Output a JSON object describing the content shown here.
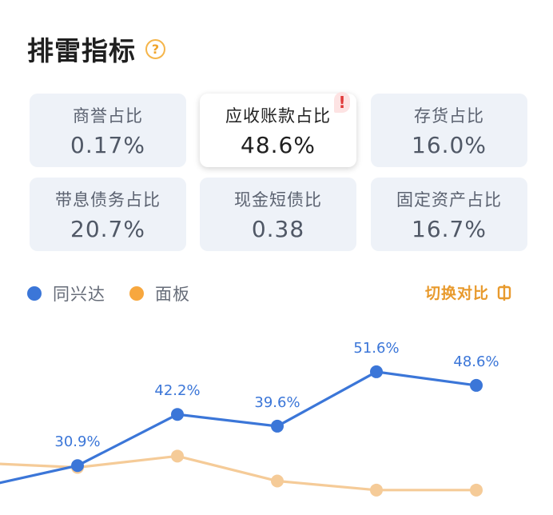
{
  "header": {
    "title": "排雷指标",
    "help_icon": "?"
  },
  "metrics": [
    {
      "label": "商誉占比",
      "value": "0.17%",
      "selected": false
    },
    {
      "label": "应收账款占比",
      "value": "48.6%",
      "selected": true,
      "alert": "!"
    },
    {
      "label": "存货占比",
      "value": "16.0%",
      "selected": false
    },
    {
      "label": "带息债务占比",
      "value": "20.7%",
      "selected": false
    },
    {
      "label": "现金短债比",
      "value": "0.38",
      "selected": false
    },
    {
      "label": "固定资产占比",
      "value": "16.7%",
      "selected": false
    }
  ],
  "legend": [
    {
      "name": "同兴达",
      "color": "#3b76d8"
    },
    {
      "name": "面板",
      "color": "#f7a73e"
    }
  ],
  "compare_button": {
    "label": "切换对比"
  },
  "colors": {
    "primary": "#3b76d8",
    "secondary": "#f5cb98",
    "accent": "#e89a2d",
    "alert": "#e03a3a"
  },
  "chart_data": {
    "type": "line",
    "series": [
      {
        "name": "同兴达",
        "values": [
          26.0,
          30.9,
          42.2,
          39.6,
          51.6,
          48.6
        ],
        "labels": [
          "",
          "30.9%",
          "42.2%",
          "39.6%",
          "51.6%",
          "48.6%"
        ]
      },
      {
        "name": "面板",
        "values": [
          31.5,
          30.5,
          33.0,
          27.5,
          25.5,
          25.5
        ]
      }
    ],
    "ylim": [
      20,
      56
    ],
    "grid": false
  }
}
